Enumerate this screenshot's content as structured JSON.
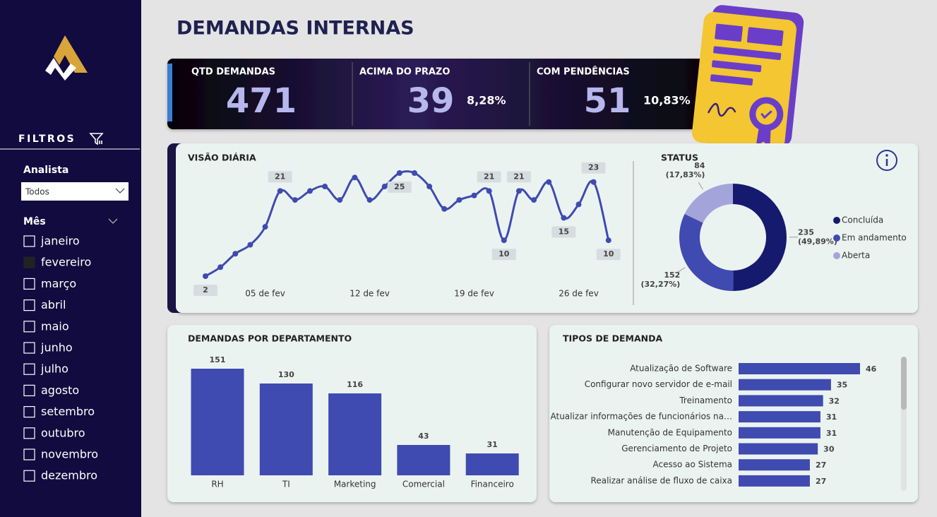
{
  "sidebar": {
    "filters_title": "FILTROS",
    "analyst_label": "Analista",
    "analyst_value": "Todos",
    "month_label": "Mês",
    "months": [
      "janeiro",
      "fevereiro",
      "março",
      "abril",
      "maio",
      "junho",
      "julho",
      "agosto",
      "setembro",
      "outubro",
      "novembro",
      "dezembro"
    ],
    "checked": [
      false,
      true,
      false,
      false,
      false,
      false,
      false,
      false,
      false,
      false,
      false,
      false
    ]
  },
  "header": {
    "title": "DEMANDAS INTERNAS"
  },
  "kpis": [
    {
      "label": "QTD DEMANDAS",
      "value": 471
    },
    {
      "label": "ACIMA DO PRAZO",
      "value": 39,
      "share": "8,28%"
    },
    {
      "label": "COM PENDÊNCIAS",
      "value": 51,
      "share": "10,83%"
    }
  ],
  "chart_data": [
    {
      "type": "line",
      "title": "VISÃO DIÁRIA",
      "color": "#3f4bb0",
      "categories": [
        null,
        null,
        null,
        null,
        "05 de fev",
        null,
        null,
        null,
        null,
        null,
        null,
        "12 de fev",
        null,
        null,
        null,
        null,
        null,
        null,
        "19 de fev",
        null,
        null,
        null,
        null,
        null,
        null,
        "26 de fev",
        null,
        null
      ],
      "values": [
        2,
        4,
        7,
        9,
        13,
        21,
        19,
        21,
        22,
        19,
        24,
        19,
        22,
        25,
        25,
        22,
        17,
        19,
        20,
        21,
        10,
        21,
        19,
        23,
        15,
        18,
        23,
        10
      ],
      "value_labels": [
        "2",
        null,
        null,
        null,
        null,
        "21",
        null,
        null,
        null,
        null,
        null,
        null,
        null,
        "25",
        null,
        null,
        null,
        null,
        null,
        "21",
        "10",
        "21",
        null,
        null,
        "15",
        null,
        "23",
        "10"
      ]
    },
    {
      "type": "pie",
      "title": "STATUS",
      "donut": true,
      "categories": [
        "Concluída",
        "Em andamento",
        "Aberta"
      ],
      "values": [
        235,
        152,
        84
      ],
      "value_labels": [
        "235 (49,89%)",
        "152 (32,27%)",
        "84 (17,83%)"
      ],
      "colors": [
        "#151a6e",
        "#3f4bb0",
        "#a3a5da"
      ]
    },
    {
      "type": "bar",
      "title": "DEMANDAS POR DEPARTAMENTO",
      "color": "#3f4bb0",
      "categories": [
        "RH",
        "TI",
        "Marketing",
        "Comercial",
        "Financeiro"
      ],
      "values": [
        151,
        130,
        116,
        43,
        31
      ]
    },
    {
      "type": "barh",
      "title": "TIPOS DE DEMANDA",
      "color": "#3f4bb0",
      "categories": [
        "Atualização de Software",
        "Configurar novo servidor de e-mail",
        "Treinamento",
        "Atualizar informações de funcionários na…",
        "Manutenção de Equipamento",
        "Gerenciamento de Projeto",
        "Acesso ao Sistema",
        "Realizar análise de fluxo de caixa"
      ],
      "values": [
        46,
        35,
        32,
        31,
        31,
        30,
        27,
        27
      ]
    }
  ]
}
